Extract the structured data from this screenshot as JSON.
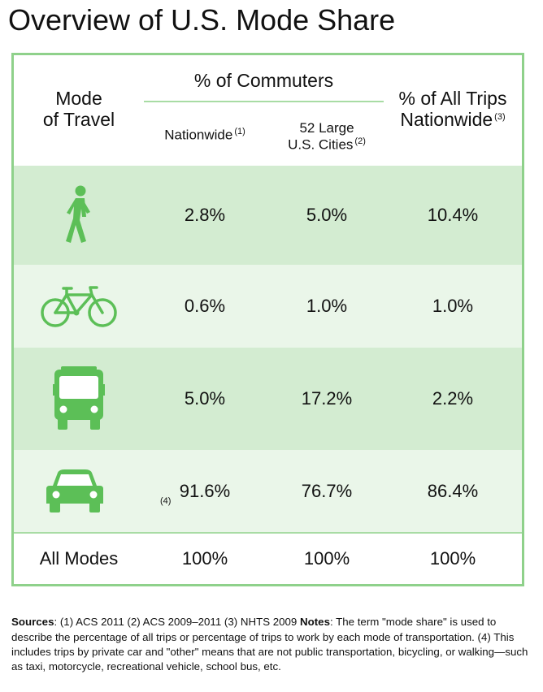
{
  "title": "Overview of U.S. Mode Share",
  "header": {
    "mode_line1": "Mode",
    "mode_line2": "of Travel",
    "commuters": "% of Commuters",
    "nationwide": "Nationwide",
    "nationwide_note": "(1)",
    "large_line1": "52 Large",
    "large_line2": "U.S. Cities",
    "large_note": "(2)",
    "alltrips_line1": "% of All Trips",
    "alltrips_line2": "Nationwide",
    "alltrips_note": "(3)"
  },
  "rows": [
    {
      "icon": "walking-person-icon",
      "nationwide": "2.8%",
      "large_cities": "5.0%",
      "all_trips": "10.4%"
    },
    {
      "icon": "bicycle-icon",
      "nationwide": "0.6%",
      "large_cities": "1.0%",
      "all_trips": "1.0%"
    },
    {
      "icon": "bus-icon",
      "nationwide": "5.0%",
      "large_cities": "17.2%",
      "all_trips": "2.2%"
    },
    {
      "icon": "car-icon",
      "icon_note": "(4)",
      "nationwide": "91.6%",
      "large_cities": "76.7%",
      "all_trips": "86.4%"
    }
  ],
  "total": {
    "label": "All Modes",
    "nationwide": "100%",
    "large_cities": "100%",
    "all_trips": "100%"
  },
  "notes": {
    "sources_label": "Sources",
    "sources_text": ": (1) ACS 2011 (2) ACS 2009–2011 (3) NHTS 2009 ",
    "notes_label": "Notes",
    "notes_text": ": The term \"mode share\" is used to describe the percentage of all trips or percentage of trips to work by each mode of transportation. (4) This includes trips by private car and \"other\" means that are not public transportation, bicycling, or walking—such as taxi, motorcycle, recreational vehicle, school bus, etc."
  },
  "colors": {
    "accent": "#5cbf57",
    "row_dark": "#d3ecd1",
    "row_light": "#eaf6e9",
    "border": "#8fd18b"
  }
}
